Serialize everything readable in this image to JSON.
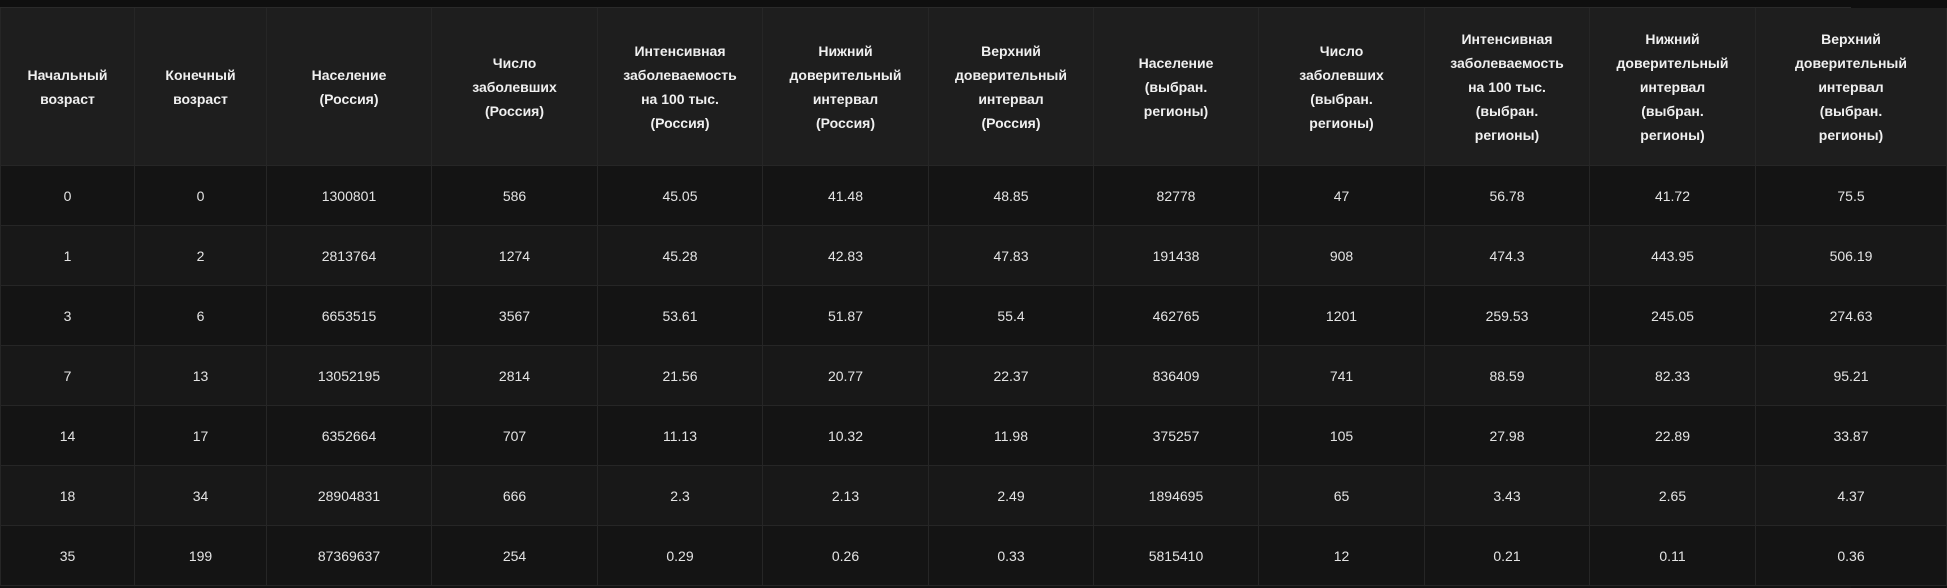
{
  "table": {
    "columns": [
      [
        "Начальный",
        "возраст"
      ],
      [
        "Конечный",
        "возраст"
      ],
      [
        "Население",
        "(Россия)"
      ],
      [
        "Число",
        "заболевших",
        "(Россия)"
      ],
      [
        "Интенсивная",
        "заболеваемость",
        "на 100 тыс.",
        "(Россия)"
      ],
      [
        "Нижний",
        "доверительный",
        "интервал",
        "(Россия)"
      ],
      [
        "Верхний",
        "доверительный",
        "интервал",
        "(Россия)"
      ],
      [
        "Население",
        "(выбран.",
        "регионы)"
      ],
      [
        "Число",
        "заболевших",
        "(выбран.",
        "регионы)"
      ],
      [
        "Интенсивная",
        "заболеваемость",
        "на 100 тыс.",
        "(выбран.",
        "регионы)"
      ],
      [
        "Нижний",
        "доверительный",
        "интервал",
        "(выбран.",
        "регионы)"
      ],
      [
        "Верхний",
        "доверительный",
        "интервал",
        "(выбран.",
        "регионы)"
      ]
    ],
    "rows": [
      [
        "0",
        "0",
        "1300801",
        "586",
        "45.05",
        "41.48",
        "48.85",
        "82778",
        "47",
        "56.78",
        "41.72",
        "75.5"
      ],
      [
        "1",
        "2",
        "2813764",
        "1274",
        "45.28",
        "42.83",
        "47.83",
        "191438",
        "908",
        "474.3",
        "443.95",
        "506.19"
      ],
      [
        "3",
        "6",
        "6653515",
        "3567",
        "53.61",
        "51.87",
        "55.4",
        "462765",
        "1201",
        "259.53",
        "245.05",
        "274.63"
      ],
      [
        "7",
        "13",
        "13052195",
        "2814",
        "21.56",
        "20.77",
        "22.37",
        "836409",
        "741",
        "88.59",
        "82.33",
        "95.21"
      ],
      [
        "14",
        "17",
        "6352664",
        "707",
        "11.13",
        "10.32",
        "11.98",
        "375257",
        "105",
        "27.98",
        "22.89",
        "33.87"
      ],
      [
        "18",
        "34",
        "28904831",
        "666",
        "2.3",
        "2.13",
        "2.49",
        "1894695",
        "65",
        "3.43",
        "2.65",
        "4.37"
      ],
      [
        "35",
        "199",
        "87369637",
        "254",
        "0.29",
        "0.26",
        "0.33",
        "5815410",
        "12",
        "0.21",
        "0.11",
        "0.36"
      ]
    ]
  }
}
